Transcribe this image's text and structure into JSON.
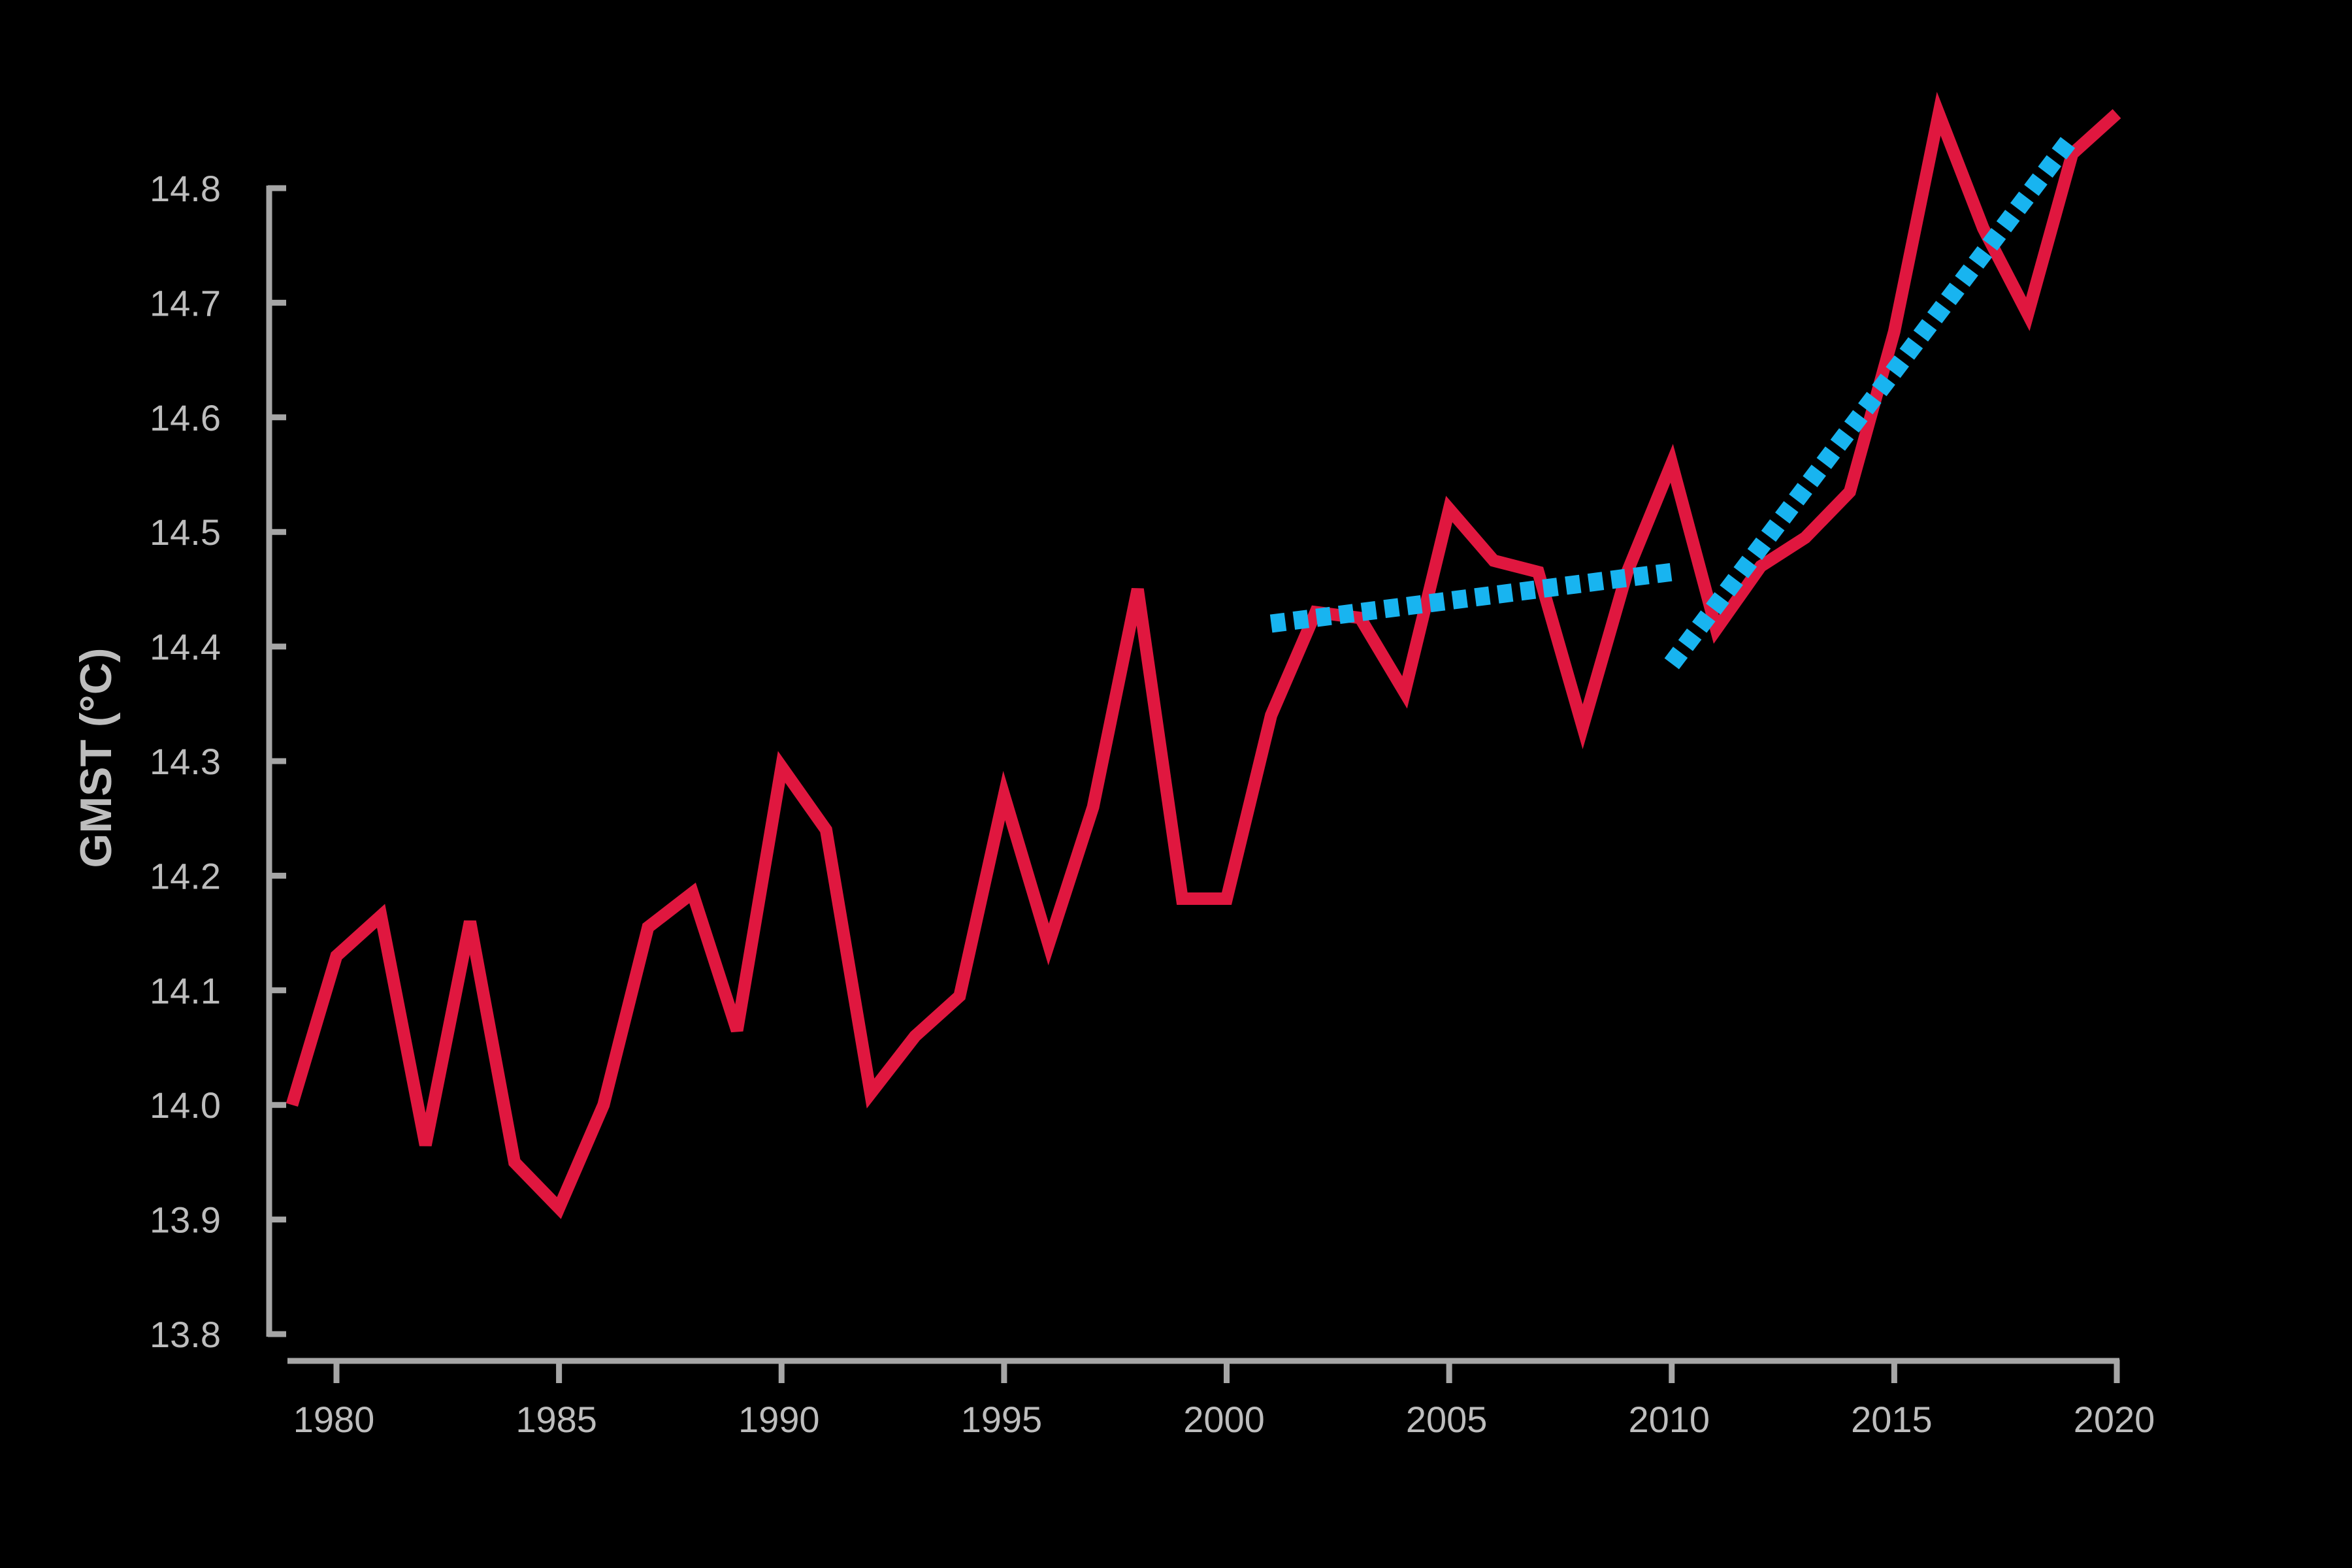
{
  "chart_data": {
    "type": "line",
    "title": "",
    "xlabel": "",
    "ylabel": "GMST (°C)",
    "xlim": [
      1979,
      2020
    ],
    "ylim": [
      13.8,
      14.8
    ],
    "grid": false,
    "x_ticks": [
      1980,
      1985,
      1990,
      1995,
      2000,
      2005,
      2010,
      2015,
      2020
    ],
    "y_ticks": [
      13.8,
      13.9,
      14.0,
      14.1,
      14.2,
      14.3,
      14.4,
      14.5,
      14.6,
      14.7,
      14.8
    ],
    "x_tick_labels": [
      "1980",
      "1985",
      "1990",
      "1995",
      "2000",
      "2005",
      "2010",
      "2015",
      "2020"
    ],
    "y_tick_labels": [
      "13.8",
      "13.9",
      "14.0",
      "14.1",
      "14.2",
      "14.3",
      "14.4",
      "14.5",
      "14.6",
      "14.7",
      "14.8"
    ],
    "series": [
      {
        "color": "#e0173f",
        "x": [
          1979,
          1980,
          1981,
          1982,
          1983,
          1984,
          1985,
          1986,
          1987,
          1988,
          1989,
          1990,
          1991,
          1992,
          1993,
          1994,
          1995,
          1996,
          1997,
          1998,
          1999,
          2000,
          2001,
          2002,
          2003,
          2004,
          2005,
          2006,
          2007,
          2008,
          2009,
          2010,
          2011,
          2012,
          2013,
          2014,
          2015,
          2016,
          2017,
          2018,
          2019,
          2020
        ],
        "values": [
          14.0,
          14.13,
          14.165,
          13.965,
          14.16,
          13.95,
          13.91,
          14.0,
          14.155,
          14.185,
          14.065,
          14.295,
          14.24,
          14.01,
          14.06,
          14.095,
          14.27,
          14.14,
          14.26,
          14.45,
          14.18,
          14.18,
          14.34,
          14.43,
          14.425,
          14.36,
          14.52,
          14.475,
          14.465,
          14.33,
          14.465,
          14.56,
          14.415,
          14.47,
          14.495,
          14.535,
          14.675,
          14.865,
          14.765,
          14.69,
          14.83,
          14.865
        ]
      }
    ],
    "trend_lines": [
      {
        "color": "#18b4f0",
        "x": [
          2001,
          2010
        ],
        "values": [
          14.42,
          14.465
        ]
      },
      {
        "color": "#18b4f0",
        "x": [
          2010,
          2019
        ],
        "values": [
          14.385,
          14.845
        ]
      }
    ],
    "axis_color": "#a6a6a6"
  }
}
